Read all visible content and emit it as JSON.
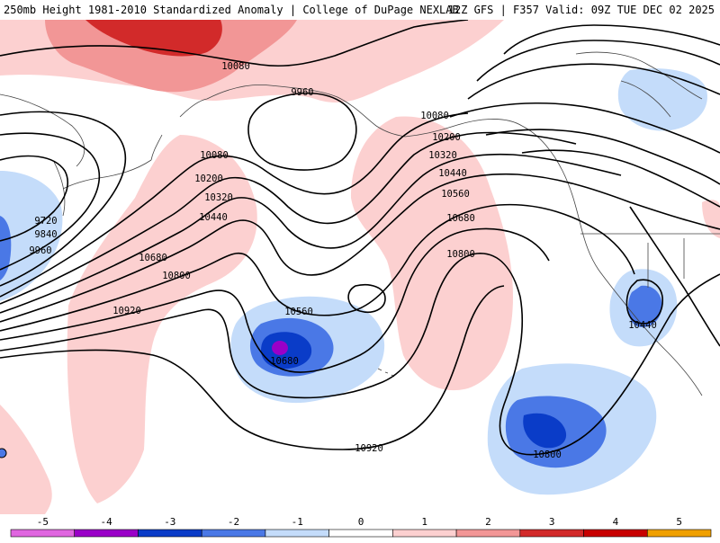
{
  "header": {
    "title_left": "250mb Height 1981-2010 Standardized Anomaly | College of DuPage NEXLAB",
    "title_right": "12Z GFS | F357 Valid: 09Z TUE DEC 02 2025"
  },
  "colors": {
    "neg5": "#e066e0",
    "neg4": "#9a00c8",
    "neg3": "#0a3cc8",
    "neg2": "#4a78e6",
    "neg1": "#c4dcfa",
    "zero": "#ffffff",
    "pos1": "#fcd0d0",
    "pos2": "#f29696",
    "pos3": "#d22a2a",
    "pos4": "#c80000",
    "pos5": "#f0a000",
    "contour": "#000000",
    "coastline": "#444444"
  },
  "colorbar": {
    "ticks": [
      "-5",
      "-4",
      "-3",
      "-2",
      "-1",
      "0",
      "1",
      "2",
      "3",
      "4",
      "5"
    ]
  },
  "contour_labels": [
    {
      "id": "l1",
      "text": "10080"
    },
    {
      "id": "l2",
      "text": "9960"
    },
    {
      "id": "l3",
      "text": "10080"
    },
    {
      "id": "l4",
      "text": "10200"
    },
    {
      "id": "l5",
      "text": "10320"
    },
    {
      "id": "l6",
      "text": "10440"
    },
    {
      "id": "l7",
      "text": "9720"
    },
    {
      "id": "l8",
      "text": "9840"
    },
    {
      "id": "l9",
      "text": "9960"
    },
    {
      "id": "l10",
      "text": "10680"
    },
    {
      "id": "l11",
      "text": "10800"
    },
    {
      "id": "l12",
      "text": "10920"
    },
    {
      "id": "l13",
      "text": "10560"
    },
    {
      "id": "l14",
      "text": "10680"
    },
    {
      "id": "l15",
      "text": "10080"
    },
    {
      "id": "l16",
      "text": "10200"
    },
    {
      "id": "l17",
      "text": "10320"
    },
    {
      "id": "l18",
      "text": "10440"
    },
    {
      "id": "l19",
      "text": "10560"
    },
    {
      "id": "l20",
      "text": "10680"
    },
    {
      "id": "l21",
      "text": "10800"
    },
    {
      "id": "l22",
      "text": "10920"
    },
    {
      "id": "l23",
      "text": "10440"
    },
    {
      "id": "l24",
      "text": "10800"
    }
  ]
}
